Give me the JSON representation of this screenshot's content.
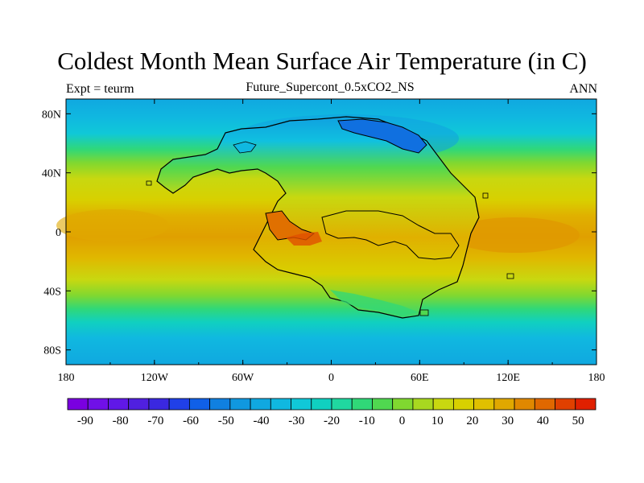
{
  "header": {
    "title": "Coldest Month Mean Surface Air Temperature (in C)",
    "left_label": "Expt = teurm",
    "subtitle": "Future_Supercont_0.5xCO2_NS",
    "right_label": "ANN"
  },
  "map": {
    "x_ticks": [
      "180",
      "120W",
      "60W",
      "0",
      "60E",
      "120E",
      "180"
    ],
    "x_tick_values": [
      -180,
      -120,
      -60,
      0,
      60,
      120,
      180
    ],
    "y_ticks": [
      "80N",
      "40N",
      "0",
      "40S",
      "80S"
    ],
    "y_tick_values": [
      80,
      40,
      0,
      -40,
      -80
    ],
    "lon_range": [
      -180,
      180
    ],
    "lat_range": [
      -90,
      90
    ]
  },
  "colorbar": {
    "labels": [
      "-90",
      "-80",
      "-70",
      "-60",
      "-50",
      "-40",
      "-30",
      "-20",
      "-10",
      "0",
      "10",
      "20",
      "30",
      "40",
      "50"
    ],
    "label_values": [
      -90,
      -80,
      -70,
      -60,
      -50,
      -40,
      -30,
      -20,
      -10,
      0,
      10,
      20,
      30,
      40,
      50
    ],
    "range": [
      -95,
      55
    ],
    "colors": [
      "#7a00e0",
      "#7010e8",
      "#6018e8",
      "#5020e0",
      "#3a28e0",
      "#2040e8",
      "#1060e8",
      "#1080e0",
      "#1098e0",
      "#10a8e0",
      "#10b8e0",
      "#10c8d8",
      "#10d0c0",
      "#20d8a0",
      "#30d878",
      "#50d850",
      "#80d830",
      "#a8d820",
      "#c8d810",
      "#d8d000",
      "#e0c000",
      "#e0a800",
      "#e08800",
      "#e06800",
      "#e04000",
      "#e02000"
    ]
  }
}
